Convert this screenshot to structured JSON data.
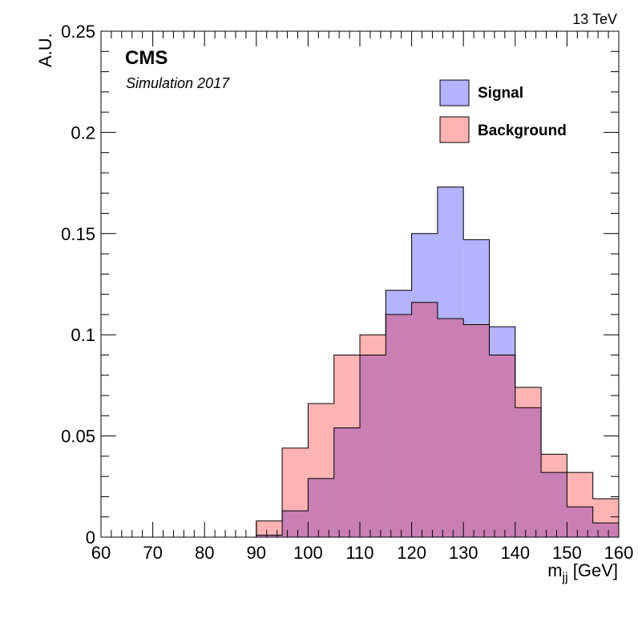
{
  "chart_data": {
    "type": "histogram",
    "xlabel_main": "m",
    "xlabel_sub": "jj",
    "xlabel_unit": " [GeV]",
    "ylabel": "A.U.",
    "xlim": [
      60,
      160
    ],
    "ylim": [
      0,
      0.25
    ],
    "xticks": [
      "60",
      "70",
      "80",
      "90",
      "100",
      "110",
      "120",
      "130",
      "140",
      "150",
      "160"
    ],
    "yticks": [
      "0",
      "0.05",
      "0.1",
      "0.15",
      "0.2",
      "0.25"
    ],
    "bin_edges": [
      90,
      95,
      100,
      105,
      110,
      115,
      120,
      125,
      130,
      135,
      140,
      145,
      150,
      155,
      160
    ],
    "series": [
      {
        "name": "Background",
        "color": "#ffb3b3",
        "values": [
          0.008,
          0.044,
          0.066,
          0.09,
          0.1,
          0.11,
          0.116,
          0.108,
          0.105,
          0.09,
          0.074,
          0.041,
          0.032,
          0.019
        ]
      },
      {
        "name": "Signal",
        "color": "#b3b3ff",
        "values": [
          0.001,
          0.013,
          0.029,
          0.054,
          0.09,
          0.122,
          0.15,
          0.173,
          0.147,
          0.104,
          0.064,
          0.032,
          0.015,
          0.007
        ]
      }
    ],
    "overlap_color": "#c97fb3",
    "legend_position": "top-right",
    "cms_text": "CMS",
    "sim_text": "Simulation 2017",
    "energy_text": "13 TeV"
  }
}
